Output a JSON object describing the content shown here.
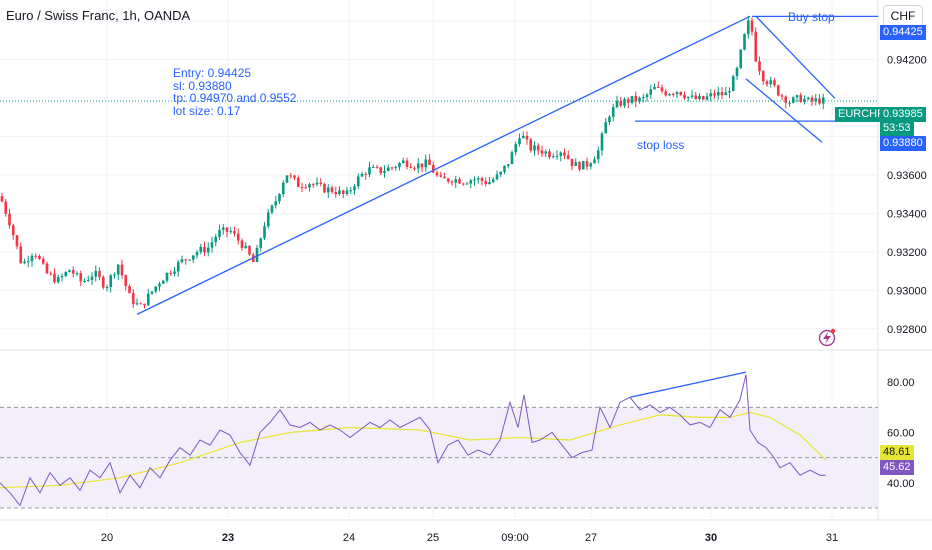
{
  "header": {
    "title": "Euro / Swiss Franc, 1h, OANDA",
    "currency_button": "CHF"
  },
  "annotations": {
    "note_lines": [
      "Entry: 0.94425",
      "sl: 0.93880",
      "tp: 0.94970 and 0.9552",
      "lot size: 0.17"
    ],
    "buy_stop": "Buy stop",
    "stop_loss": "stop loss"
  },
  "price_axis": {
    "ticks": [
      "0.94200",
      "0.93600",
      "0.93400",
      "0.93200",
      "0.93000",
      "0.92800"
    ],
    "entry_label": "0.94425",
    "sl_label": "0.93880",
    "symbol_label": "EURCHF",
    "current_price": "0.93985",
    "countdown": "53:53"
  },
  "rsi_axis": {
    "ticks": [
      "80.00",
      "60.00",
      "40.00"
    ],
    "ma_value": "48.61",
    "rsi_value": "45.62"
  },
  "time_axis": {
    "labels": [
      "20",
      "23",
      "24",
      "25",
      "09:00",
      "27",
      "30",
      "31"
    ],
    "bold": [
      "23",
      "30"
    ]
  },
  "colors": {
    "up": "#089981",
    "down": "#f23645",
    "trend": "#2962ff",
    "rsi": "#7e57c2",
    "rsi_ma": "#e6e635",
    "rsi_band": "#f3effa"
  },
  "icons": {
    "lightning": "lightning-bolt-icon"
  },
  "chart_data": {
    "type": "candlestick",
    "symbol": "EURCHF",
    "timeframe": "1h",
    "price_ylim": [
      0.927,
      0.9451
    ],
    "rsi_ylim": [
      26,
      92
    ],
    "rsi_levels": [
      70,
      50,
      30
    ],
    "price_path": [
      [
        0,
        0.9349
      ],
      [
        10,
        0.9335
      ],
      [
        22,
        0.9313
      ],
      [
        34,
        0.9321
      ],
      [
        46,
        0.9309
      ],
      [
        58,
        0.9305
      ],
      [
        70,
        0.9311
      ],
      [
        82,
        0.9304
      ],
      [
        94,
        0.9309
      ],
      [
        106,
        0.9302
      ],
      [
        118,
        0.9314
      ],
      [
        130,
        0.9296
      ],
      [
        140,
        0.9291
      ],
      [
        150,
        0.9298
      ],
      [
        160,
        0.9305
      ],
      [
        172,
        0.9311
      ],
      [
        184,
        0.9316
      ],
      [
        196,
        0.932
      ],
      [
        208,
        0.9322
      ],
      [
        218,
        0.933
      ],
      [
        230,
        0.9331
      ],
      [
        242,
        0.9324
      ],
      [
        254,
        0.9314
      ],
      [
        264,
        0.9334
      ],
      [
        276,
        0.9347
      ],
      [
        286,
        0.9361
      ],
      [
        298,
        0.9355
      ],
      [
        310,
        0.9356
      ],
      [
        322,
        0.9353
      ],
      [
        334,
        0.9352
      ],
      [
        346,
        0.9349
      ],
      [
        356,
        0.9357
      ],
      [
        368,
        0.9363
      ],
      [
        380,
        0.9362
      ],
      [
        392,
        0.9364
      ],
      [
        404,
        0.9367
      ],
      [
        416,
        0.9365
      ],
      [
        428,
        0.9366
      ],
      [
        440,
        0.9357
      ],
      [
        452,
        0.9358
      ],
      [
        464,
        0.9357
      ],
      [
        476,
        0.9358
      ],
      [
        488,
        0.9356
      ],
      [
        500,
        0.936
      ],
      [
        510,
        0.9368
      ],
      [
        520,
        0.9382
      ],
      [
        530,
        0.9374
      ],
      [
        540,
        0.9373
      ],
      [
        550,
        0.9371
      ],
      [
        562,
        0.9373
      ],
      [
        574,
        0.9365
      ],
      [
        586,
        0.9365
      ],
      [
        598,
        0.9372
      ],
      [
        608,
        0.9391
      ],
      [
        618,
        0.9397
      ],
      [
        630,
        0.9399
      ],
      [
        642,
        0.9399
      ],
      [
        654,
        0.9405
      ],
      [
        666,
        0.9403
      ],
      [
        678,
        0.9404
      ],
      [
        690,
        0.94
      ],
      [
        702,
        0.9399
      ],
      [
        714,
        0.9402
      ],
      [
        726,
        0.9402
      ],
      [
        736,
        0.9412
      ],
      [
        744,
        0.9431
      ],
      [
        750,
        0.9442
      ],
      [
        756,
        0.942
      ],
      [
        764,
        0.941
      ],
      [
        772,
        0.9407
      ],
      [
        780,
        0.9402
      ],
      [
        790,
        0.9398
      ],
      [
        800,
        0.94
      ],
      [
        810,
        0.9398
      ],
      [
        820,
        0.9399
      ],
      [
        826,
        0.9398
      ]
    ],
    "rsi_path": [
      [
        0,
        40
      ],
      [
        10,
        36
      ],
      [
        20,
        31
      ],
      [
        30,
        42
      ],
      [
        40,
        36
      ],
      [
        50,
        44
      ],
      [
        60,
        39
      ],
      [
        70,
        42
      ],
      [
        80,
        37
      ],
      [
        90,
        45
      ],
      [
        100,
        42
      ],
      [
        110,
        48
      ],
      [
        120,
        36
      ],
      [
        130,
        43
      ],
      [
        140,
        38
      ],
      [
        150,
        46
      ],
      [
        160,
        42
      ],
      [
        170,
        49
      ],
      [
        180,
        54
      ],
      [
        190,
        51
      ],
      [
        200,
        57
      ],
      [
        210,
        55
      ],
      [
        220,
        61
      ],
      [
        230,
        59
      ],
      [
        240,
        52
      ],
      [
        250,
        47
      ],
      [
        260,
        60
      ],
      [
        270,
        64
      ],
      [
        280,
        69
      ],
      [
        290,
        63
      ],
      [
        300,
        62
      ],
      [
        310,
        64
      ],
      [
        320,
        61
      ],
      [
        330,
        63
      ],
      [
        340,
        61
      ],
      [
        350,
        58
      ],
      [
        360,
        61
      ],
      [
        370,
        64
      ],
      [
        380,
        62
      ],
      [
        390,
        65
      ],
      [
        400,
        62
      ],
      [
        410,
        64
      ],
      [
        420,
        66
      ],
      [
        430,
        61
      ],
      [
        438,
        48
      ],
      [
        448,
        55
      ],
      [
        458,
        57
      ],
      [
        468,
        51
      ],
      [
        478,
        53
      ],
      [
        490,
        51
      ],
      [
        500,
        57
      ],
      [
        510,
        72
      ],
      [
        518,
        62
      ],
      [
        524,
        75
      ],
      [
        532,
        56
      ],
      [
        540,
        57
      ],
      [
        552,
        60
      ],
      [
        562,
        55
      ],
      [
        572,
        50
      ],
      [
        582,
        52
      ],
      [
        592,
        53
      ],
      [
        600,
        70
      ],
      [
        610,
        62
      ],
      [
        620,
        72
      ],
      [
        630,
        74
      ],
      [
        640,
        69
      ],
      [
        650,
        71
      ],
      [
        660,
        68
      ],
      [
        670,
        70
      ],
      [
        680,
        67
      ],
      [
        690,
        63
      ],
      [
        700,
        64
      ],
      [
        710,
        62
      ],
      [
        720,
        69
      ],
      [
        730,
        66
      ],
      [
        740,
        73
      ],
      [
        746,
        83
      ],
      [
        750,
        61
      ],
      [
        758,
        56
      ],
      [
        766,
        54
      ],
      [
        774,
        50
      ],
      [
        780,
        46
      ],
      [
        790,
        48
      ],
      [
        800,
        43
      ],
      [
        810,
        45
      ],
      [
        820,
        43
      ],
      [
        826,
        43
      ]
    ],
    "rsi_ma_path": [
      [
        0,
        38
      ],
      [
        60,
        39
      ],
      [
        120,
        42
      ],
      [
        180,
        48
      ],
      [
        240,
        56
      ],
      [
        290,
        60
      ],
      [
        350,
        62
      ],
      [
        420,
        61
      ],
      [
        470,
        57
      ],
      [
        520,
        58
      ],
      [
        570,
        57
      ],
      [
        620,
        63
      ],
      [
        660,
        67
      ],
      [
        700,
        66
      ],
      [
        730,
        66
      ],
      [
        750,
        68
      ],
      [
        770,
        66
      ],
      [
        800,
        59
      ],
      [
        826,
        49
      ]
    ],
    "trendlines": [
      {
        "name": "uptrend",
        "from": [
          137,
          0.92875
        ],
        "to": [
          750,
          0.94425
        ]
      },
      {
        "name": "upper-channel",
        "from": [
          756,
          0.94425
        ],
        "to": [
          835,
          0.93998
        ]
      },
      {
        "name": "lower-channel",
        "from": [
          746,
          0.941
        ],
        "to": [
          822,
          0.9377
        ]
      },
      {
        "name": "rsi-divergence",
        "from": [
          630,
          74
        ],
        "to": [
          746,
          84
        ]
      }
    ],
    "horizontal_lines": [
      {
        "name": "buy-stop",
        "price": 0.94425
      },
      {
        "name": "stop-loss",
        "price": 0.9388
      },
      {
        "name": "current-price",
        "price": 0.93985
      }
    ]
  }
}
